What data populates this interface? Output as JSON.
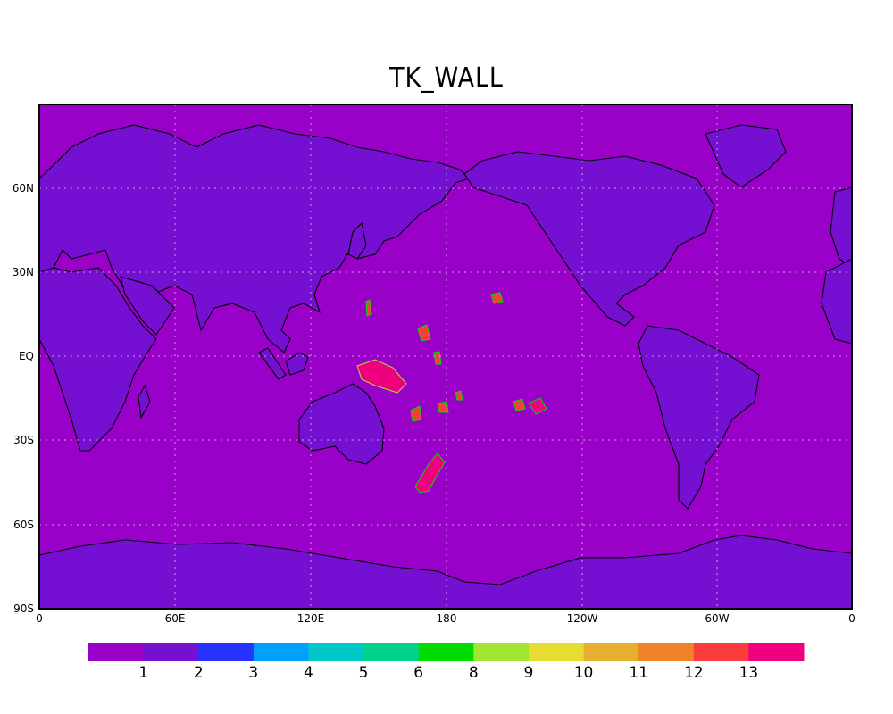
{
  "title": "TK_WALL",
  "colors": {
    "ocean": "#9900c8",
    "land": "#7510d2",
    "coast": "#000000",
    "grid": "#c8a0e0"
  },
  "x_ticks": [
    "0",
    "60E",
    "120E",
    "180",
    "120W",
    "60W",
    "0"
  ],
  "y_ticks": [
    "60N",
    "30N",
    "EQ",
    "30S",
    "60S",
    "90S"
  ],
  "colorbar": {
    "colors": [
      "#9900c8",
      "#7510d2",
      "#2832ff",
      "#00a0ff",
      "#00c8c8",
      "#00d28c",
      "#00dc00",
      "#a0e632",
      "#e6dc32",
      "#e6af2d",
      "#f08228",
      "#fa3c3c",
      "#f0007f"
    ],
    "labels": [
      "1",
      "2",
      "3",
      "4",
      "5",
      "6",
      "8",
      "9",
      "10",
      "11",
      "12",
      "13"
    ]
  }
}
